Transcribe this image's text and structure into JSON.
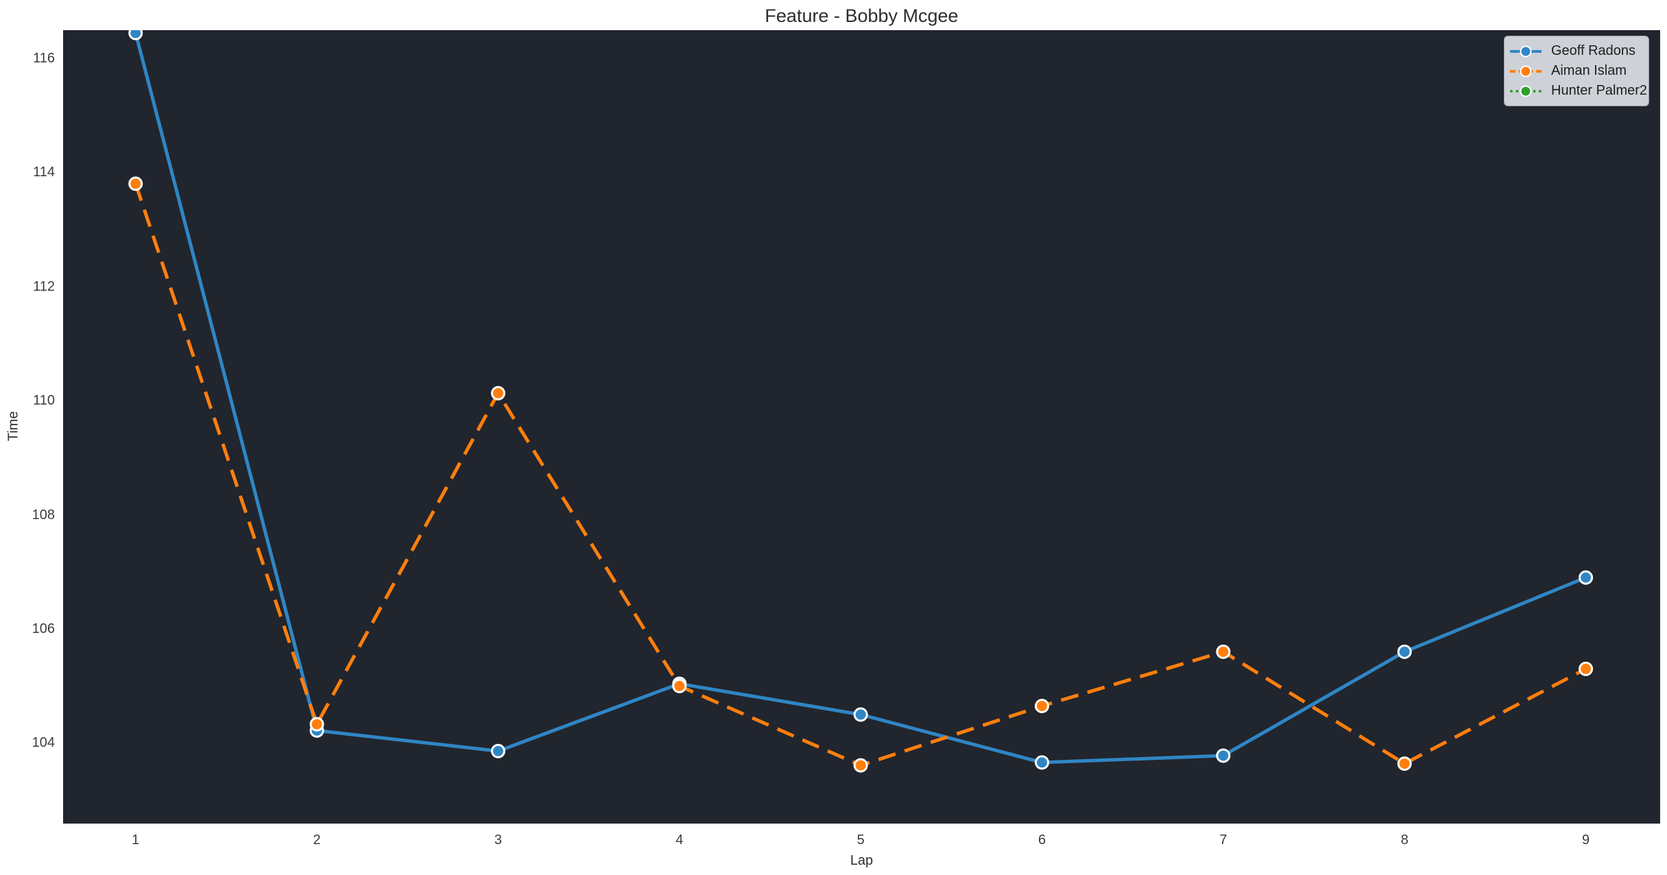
{
  "chart_data": {
    "type": "line",
    "title": "Feature - Bobby Mcgee",
    "xlabel": "Lap",
    "ylabel": "Time",
    "x": [
      1,
      2,
      3,
      4,
      5,
      6,
      7,
      8,
      9
    ],
    "x_tick_labels": [
      "1",
      "2",
      "3",
      "4",
      "5",
      "6",
      "7",
      "8",
      "9"
    ],
    "y_ticks": [
      104,
      106,
      108,
      110,
      112,
      114,
      116
    ],
    "xlim": [
      0.6,
      9.41
    ],
    "ylim": [
      102.6,
      116.5
    ],
    "grid": false,
    "legend_position": "upper right",
    "series": [
      {
        "name": "Geoff Radons",
        "color": "#2f86c5",
        "line_style": "solid",
        "marker": "circle",
        "values": [
          116.45,
          104.23,
          103.87,
          105.05,
          104.51,
          103.67,
          103.79,
          105.61,
          106.91
        ]
      },
      {
        "name": "Aiman Islam",
        "color": "#ff7f0e",
        "line_style": "dashed",
        "marker": "circle",
        "values": [
          113.81,
          104.34,
          110.14,
          105.01,
          103.62,
          104.66,
          105.61,
          103.65,
          105.31
        ]
      },
      {
        "name": "Hunter Palmer2",
        "color": "#2ca02c",
        "line_style": "dotted",
        "marker": "circle",
        "values": []
      }
    ]
  },
  "colors": {
    "figure_background": "#ffffff",
    "plot_background": "#21252d",
    "legend_background": "#ced1d7",
    "legend_border": "#9b9fa6",
    "text": "#2d2d2d",
    "tick_text": "#3c3c3c",
    "marker_edge": "#ffffff"
  }
}
